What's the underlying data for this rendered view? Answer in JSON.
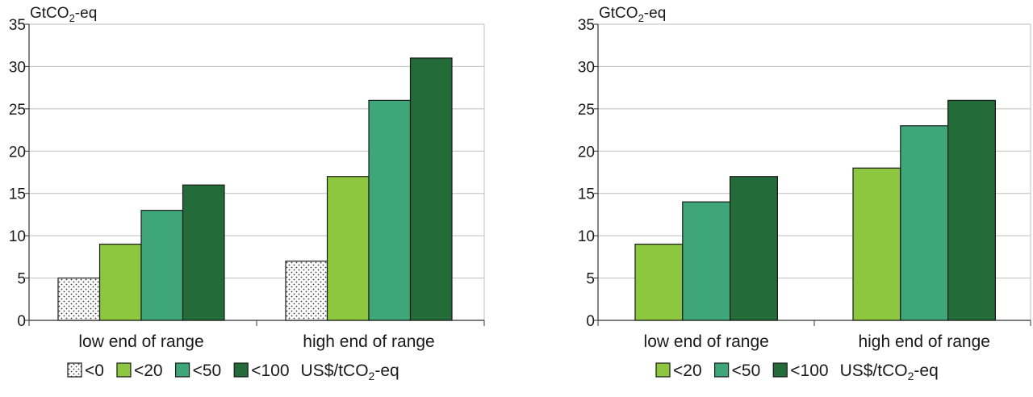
{
  "colors": {
    "lt0": "dotted",
    "lt20": "#8dc63f",
    "lt50": "#3fa679",
    "lt100": "#236b38",
    "grid": "#bfbfbf",
    "axis": "#333333"
  },
  "legend_unit": "US$/tCO₂-eq",
  "chart_data": [
    {
      "type": "bar",
      "unit_label": "GtCO₂-eq",
      "ylim": [
        0,
        35
      ],
      "yticks": [
        0,
        5,
        10,
        15,
        20,
        25,
        30,
        35
      ],
      "grid": true,
      "categories": [
        "low end of range",
        "high end of range"
      ],
      "series": [
        {
          "name": "<0",
          "color_key": "lt0",
          "values": [
            5,
            7
          ]
        },
        {
          "name": "<20",
          "color_key": "lt20",
          "values": [
            9,
            17
          ]
        },
        {
          "name": "<50",
          "color_key": "lt50",
          "values": [
            13,
            26
          ]
        },
        {
          "name": "<100",
          "color_key": "lt100",
          "values": [
            16,
            31
          ]
        }
      ],
      "legend_placement": "bottom"
    },
    {
      "type": "bar",
      "unit_label": "GtCO₂-eq",
      "ylim": [
        0,
        35
      ],
      "yticks": [
        0,
        5,
        10,
        15,
        20,
        25,
        30,
        35
      ],
      "grid": true,
      "categories": [
        "low end of range",
        "high end of range"
      ],
      "series": [
        {
          "name": "<20",
          "color_key": "lt20",
          "values": [
            9,
            18
          ]
        },
        {
          "name": "<50",
          "color_key": "lt50",
          "values": [
            14,
            23
          ]
        },
        {
          "name": "<100",
          "color_key": "lt100",
          "values": [
            17,
            26
          ]
        }
      ],
      "legend_placement": "bottom"
    }
  ]
}
